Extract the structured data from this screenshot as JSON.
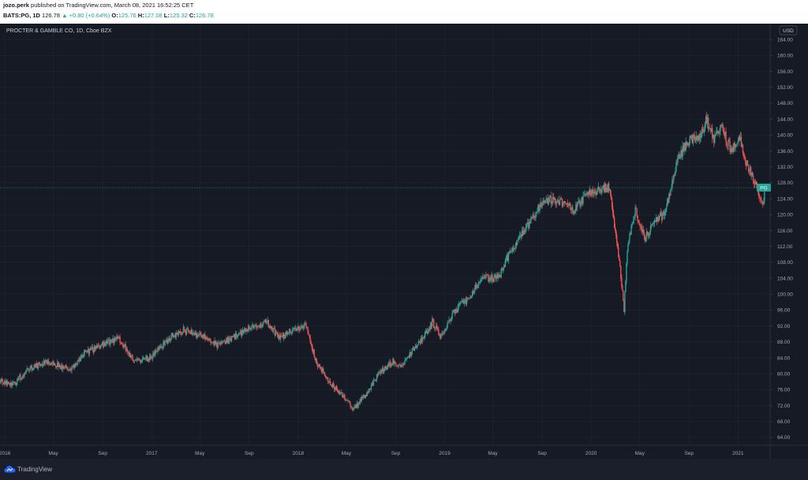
{
  "header": {
    "author": "jozo.perk",
    "published_text": "published on TradingView.com, March 08, 2021 16:52:25 CET",
    "symbol": "BATS:PG, 1D",
    "last": "126.78",
    "change": "▲ +0.80 (+0.64%)",
    "o_label": "O:",
    "o_value": "125.76",
    "h_label": "H:",
    "h_value": "127.08",
    "l_label": "L:",
    "l_value": "125.32",
    "c_label": "C:",
    "c_value": "126.78"
  },
  "footer": {
    "brand": "TradingView",
    "logo_icon": "tradingview-cloud-icon"
  },
  "colors": {
    "background": "#161a25",
    "grid": "#222634",
    "up": "#26a69a",
    "down": "#ef5350",
    "axis_text": "#a3a6af"
  },
  "chart_data": {
    "type": "candlestick",
    "title": "PROCTER & GAMBLE CO, 1D, Cboe BZX",
    "currency": "USD",
    "price_tag": "PG",
    "last_price": 126.78,
    "ylim": [
      62,
      168
    ],
    "y_ticks": [
      "64.00",
      "68.00",
      "72.00",
      "76.00",
      "80.00",
      "84.00",
      "88.00",
      "92.00",
      "96.00",
      "100.00",
      "104.00",
      "108.00",
      "112.00",
      "116.00",
      "120.00",
      "124.00",
      "128.00",
      "132.00",
      "136.00",
      "140.00",
      "144.00",
      "148.00",
      "152.00",
      "156.00",
      "160.00",
      "164.00"
    ],
    "x_range": [
      "2015-12-20",
      "2021-03-22"
    ],
    "x_ticks": [
      {
        "label": "2016",
        "date": "2016-01-01"
      },
      {
        "label": "May",
        "date": "2016-05-01"
      },
      {
        "label": "Sep",
        "date": "2016-09-01"
      },
      {
        "label": "2017",
        "date": "2017-01-01"
      },
      {
        "label": "May",
        "date": "2017-05-01"
      },
      {
        "label": "Sep",
        "date": "2017-09-01"
      },
      {
        "label": "2018",
        "date": "2018-01-01"
      },
      {
        "label": "May",
        "date": "2018-05-01"
      },
      {
        "label": "Sep",
        "date": "2018-09-01"
      },
      {
        "label": "2019",
        "date": "2019-01-01"
      },
      {
        "label": "May",
        "date": "2019-05-01"
      },
      {
        "label": "Sep",
        "date": "2019-09-01"
      },
      {
        "label": "2020",
        "date": "2020-01-01"
      },
      {
        "label": "May",
        "date": "2020-05-01"
      },
      {
        "label": "Sep",
        "date": "2020-09-01"
      },
      {
        "label": "2021",
        "date": "2021-01-01"
      }
    ],
    "price_path": [
      [
        "2015-12-21",
        78
      ],
      [
        "2016-01-20",
        77
      ],
      [
        "2016-02-25",
        81
      ],
      [
        "2016-04-15",
        83
      ],
      [
        "2016-06-15",
        81
      ],
      [
        "2016-07-15",
        85
      ],
      [
        "2016-08-25",
        87
      ],
      [
        "2016-10-10",
        89
      ],
      [
        "2016-11-20",
        83
      ],
      [
        "2016-12-30",
        84
      ],
      [
        "2017-02-15",
        89
      ],
      [
        "2017-03-20",
        91
      ],
      [
        "2017-05-15",
        89
      ],
      [
        "2017-06-15",
        87
      ],
      [
        "2017-07-20",
        89
      ],
      [
        "2017-08-25",
        91
      ],
      [
        "2017-10-15",
        93
      ],
      [
        "2017-11-15",
        89
      ],
      [
        "2017-12-15",
        91
      ],
      [
        "2018-01-20",
        92
      ],
      [
        "2018-02-15",
        83
      ],
      [
        "2018-03-20",
        78
      ],
      [
        "2018-04-25",
        74
      ],
      [
        "2018-05-20",
        71
      ],
      [
        "2018-06-20",
        75
      ],
      [
        "2018-07-20",
        80
      ],
      [
        "2018-08-25",
        83
      ],
      [
        "2018-09-15",
        82
      ],
      [
        "2018-10-15",
        86
      ],
      [
        "2018-11-15",
        90
      ],
      [
        "2018-12-01",
        93
      ],
      [
        "2018-12-24",
        89
      ],
      [
        "2019-01-20",
        95
      ],
      [
        "2019-03-01",
        99
      ],
      [
        "2019-04-01",
        104
      ],
      [
        "2019-05-15",
        104
      ],
      [
        "2019-06-15",
        111
      ],
      [
        "2019-07-25",
        117
      ],
      [
        "2019-09-01",
        123
      ],
      [
        "2019-10-01",
        124
      ],
      [
        "2019-11-20",
        121
      ],
      [
        "2019-12-20",
        125
      ],
      [
        "2020-01-20",
        126
      ],
      [
        "2020-02-15",
        127
      ],
      [
        "2020-03-01",
        116
      ],
      [
        "2020-03-15",
        105
      ],
      [
        "2020-03-23",
        96
      ],
      [
        "2020-04-01",
        113
      ],
      [
        "2020-04-20",
        121
      ],
      [
        "2020-05-15",
        114
      ],
      [
        "2020-06-10",
        119
      ],
      [
        "2020-07-01",
        120
      ],
      [
        "2020-08-01",
        133
      ],
      [
        "2020-08-25",
        138
      ],
      [
        "2020-10-01",
        140
      ],
      [
        "2020-10-15",
        144
      ],
      [
        "2020-11-01",
        139
      ],
      [
        "2020-11-20",
        142
      ],
      [
        "2020-12-15",
        136
      ],
      [
        "2021-01-05",
        139
      ],
      [
        "2021-01-25",
        132
      ],
      [
        "2021-02-10",
        129
      ],
      [
        "2021-02-25",
        125
      ],
      [
        "2021-03-04",
        122
      ],
      [
        "2021-03-08",
        126.78
      ]
    ]
  }
}
